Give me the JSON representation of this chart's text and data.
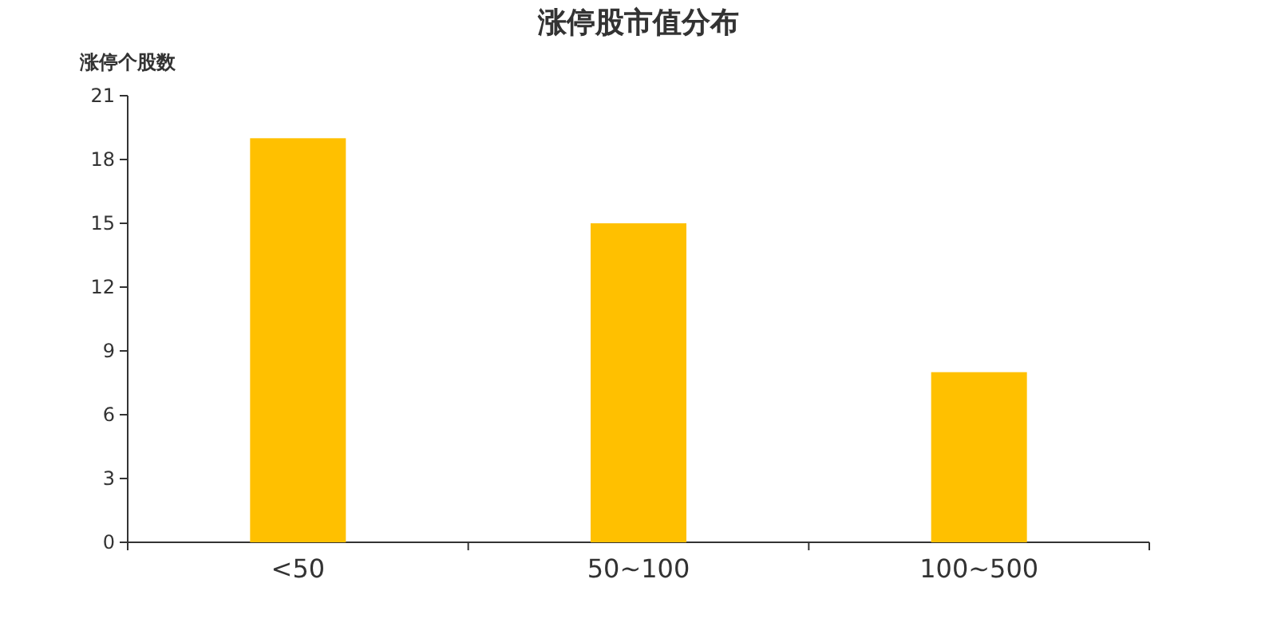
{
  "chart_data": {
    "type": "bar",
    "title": "涨停股市值分布",
    "ylabel": "涨停个股数",
    "categories": [
      "<50",
      "50~100",
      "100~500"
    ],
    "values": [
      19,
      15,
      8
    ],
    "color": "#ffc000",
    "ylim": [
      0,
      21
    ],
    "yticks": [
      0,
      3,
      6,
      9,
      12,
      15,
      18,
      21
    ]
  }
}
